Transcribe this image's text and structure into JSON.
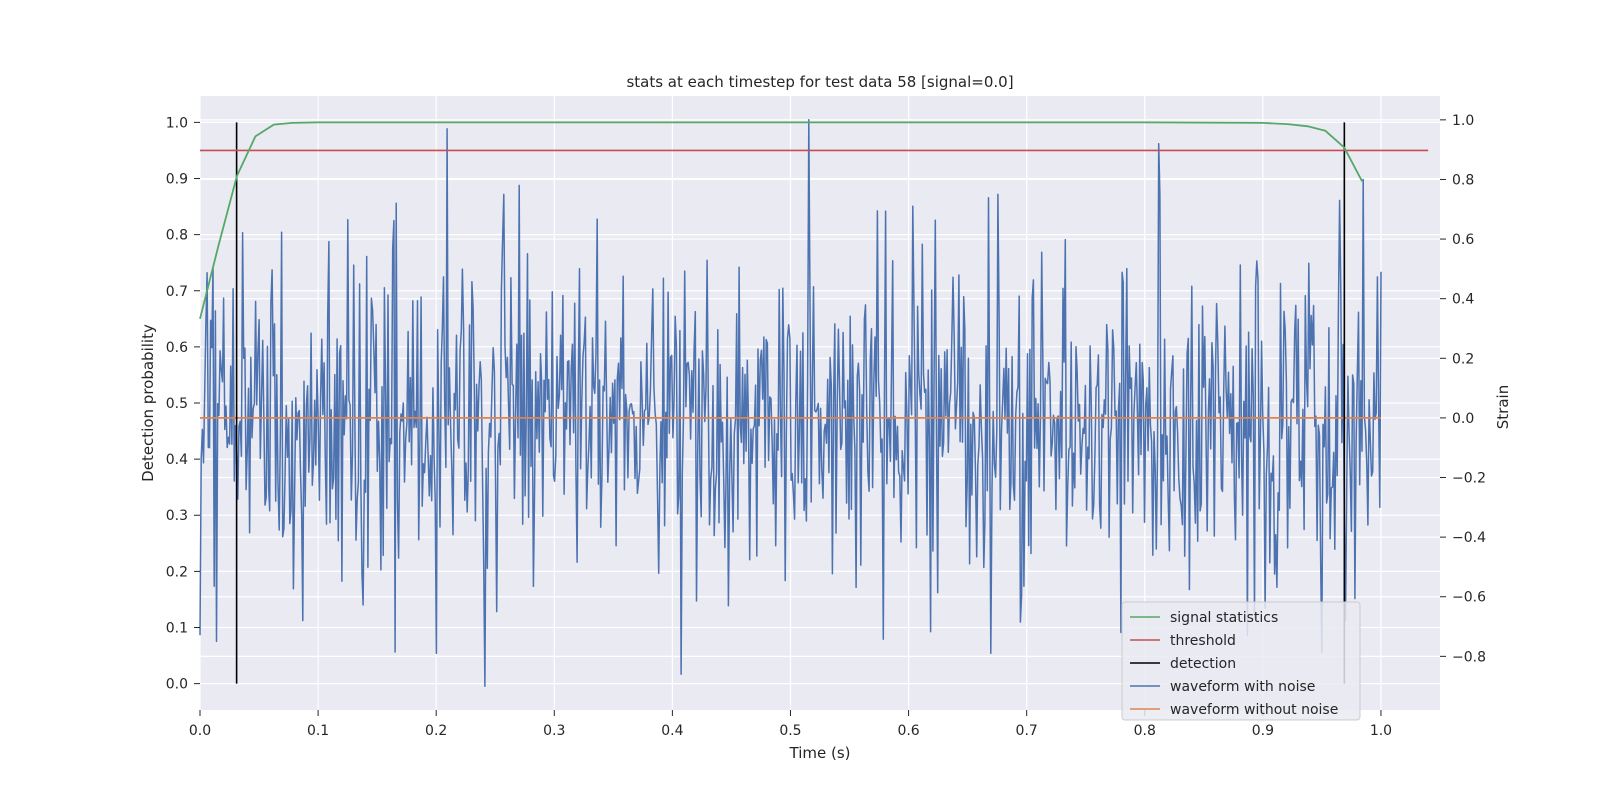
{
  "chart_data": {
    "type": "line",
    "title": "stats at each timestep for test data 58 [signal=0.0]",
    "xlabel": "Time (s)",
    "ylabel": "Detection probability",
    "y2label": "Strain",
    "xlim": [
      0.0,
      1.05
    ],
    "ylim": [
      -0.047,
      1.047
    ],
    "y2lim": [
      -0.98,
      1.08
    ],
    "x_ticks": [
      0.0,
      0.1,
      0.2,
      0.3,
      0.4,
      0.5,
      0.6,
      0.7,
      0.8,
      0.9,
      1.0
    ],
    "x_tick_labels": [
      "0.0",
      "0.1",
      "0.2",
      "0.3",
      "0.4",
      "0.5",
      "0.6",
      "0.7",
      "0.8",
      "0.9",
      "1.0"
    ],
    "y_ticks": [
      0.0,
      0.1,
      0.2,
      0.3,
      0.4,
      0.5,
      0.6,
      0.7,
      0.8,
      0.9,
      1.0
    ],
    "y_tick_labels": [
      "0.0",
      "0.1",
      "0.2",
      "0.3",
      "0.4",
      "0.5",
      "0.6",
      "0.7",
      "0.8",
      "0.9",
      "1.0"
    ],
    "y2_ticks": [
      -0.8,
      -0.6,
      -0.4,
      -0.2,
      0.0,
      0.2,
      0.4,
      0.6,
      0.8,
      1.0
    ],
    "y2_tick_labels": [
      "−0.8",
      "−0.6",
      "−0.4",
      "−0.2",
      "0.0",
      "0.2",
      "0.4",
      "0.6",
      "0.8",
      "1.0"
    ],
    "grid": true,
    "legend_position": "lower-right",
    "colors": {
      "background": "#eaeaf2",
      "grid": "#ffffff",
      "signal_statistics": "#55a868",
      "threshold": "#c44e52",
      "detection": "#000000",
      "waveform_with_noise": "#4c72b0",
      "waveform_without_noise": "#dd8452"
    },
    "series": [
      {
        "name": "signal statistics",
        "axis": "left",
        "x": [
          0.0,
          0.0156,
          0.0313,
          0.0469,
          0.0625,
          0.0781,
          0.1,
          0.2,
          0.3,
          0.4,
          0.5,
          0.6,
          0.7,
          0.8,
          0.9,
          0.921,
          0.938,
          0.953,
          0.969,
          0.984
        ],
        "values": [
          0.65,
          0.78,
          0.905,
          0.975,
          0.996,
          0.999,
          1.0,
          1.0,
          1.0,
          1.0,
          1.0,
          1.0,
          1.0,
          1.0,
          0.999,
          0.997,
          0.993,
          0.985,
          0.955,
          0.895
        ]
      },
      {
        "name": "threshold",
        "axis": "left",
        "x": [
          0.0,
          1.04
        ],
        "values": [
          0.95,
          0.95
        ]
      },
      {
        "name": "detection",
        "axis": "left",
        "type": "vlines",
        "x": [
          0.031,
          0.969
        ],
        "ymin": 0.0,
        "ymax": 1.0
      },
      {
        "name": "waveform with noise",
        "axis": "right",
        "x_range": [
          0.0,
          1.0
        ],
        "n_points": 1000,
        "approx_std": 0.27,
        "range": [
          -0.91,
          1.0
        ],
        "peaks": [
          {
            "x": 0.209,
            "value": 0.97
          },
          {
            "x": 0.516,
            "value": 1.0
          },
          {
            "x": 0.812,
            "value": 0.92
          },
          {
            "x": 0.27,
            "value": 0.78
          },
          {
            "x": 0.166,
            "value": 0.72
          },
          {
            "x": 0.241,
            "value": -0.9
          },
          {
            "x": 0.2,
            "value": -0.79
          },
          {
            "x": 0.407,
            "value": -0.86
          },
          {
            "x": 0.087,
            "value": -0.68
          },
          {
            "x": 0.014,
            "value": -0.75
          },
          {
            "x": 0.78,
            "value": -0.72
          },
          {
            "x": 0.887,
            "value": -0.73
          },
          {
            "x": 0.97,
            "value": -0.68
          },
          {
            "x": 0.985,
            "value": 0.8
          },
          {
            "x": 0.67,
            "value": -0.79
          }
        ]
      },
      {
        "name": "waveform without noise",
        "axis": "right",
        "x": [
          0.0,
          1.0
        ],
        "values": [
          0.0,
          0.0
        ]
      }
    ],
    "legend": [
      "signal statistics",
      "threshold",
      "detection",
      "waveform with noise",
      "waveform without noise"
    ]
  }
}
